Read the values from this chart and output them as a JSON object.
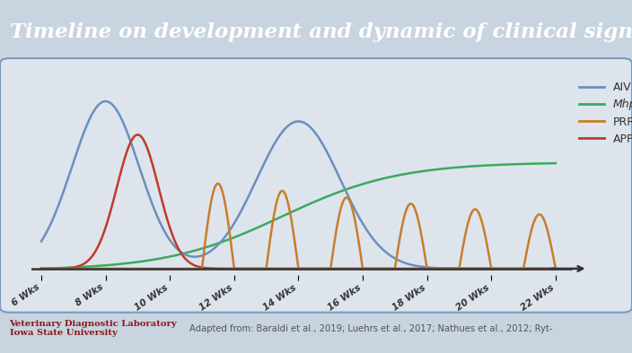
{
  "title": "Timeline on development and dynamic of clinical signs",
  "title_bg_top": "#1e3a6e",
  "title_bg_bottom": "#162d5a",
  "title_color": "#ffffff",
  "chart_bg": "#c8d4e0",
  "plot_bg": "#dde4ec",
  "footer_left": "Veterinary Diagnostic Laboratory\nIowa State University",
  "footer_right": "Adapted from: Baraldi et al., 2019; Luehrs et al., 2017; Nathues et al., 2012; Ryt-",
  "footer_left_color": "#8b1a1a",
  "footer_right_color": "#555555",
  "x_labels": [
    "6 Wks",
    "8 Wks",
    "10 Wks",
    "12 Wks",
    "14 Wks",
    "16 Wks",
    "18 Wks",
    "20 Wks",
    "22 Wks"
  ],
  "legend": [
    {
      "label": "AIV",
      "color": "#6b8fbc",
      "italic": false
    },
    {
      "label": "Mhp",
      "color": "#3aaa5c",
      "italic": true
    },
    {
      "label": "PRRSV",
      "color": "#c87d2a",
      "italic": false
    },
    {
      "label": "APP",
      "color": "#c0392b",
      "italic": false
    }
  ],
  "AIV_color": "#6b8fbc",
  "Mhp_color": "#3aaa5c",
  "PRRSV_color": "#c87d2a",
  "APP_color": "#c0392b",
  "border_color": "#7a9abf"
}
